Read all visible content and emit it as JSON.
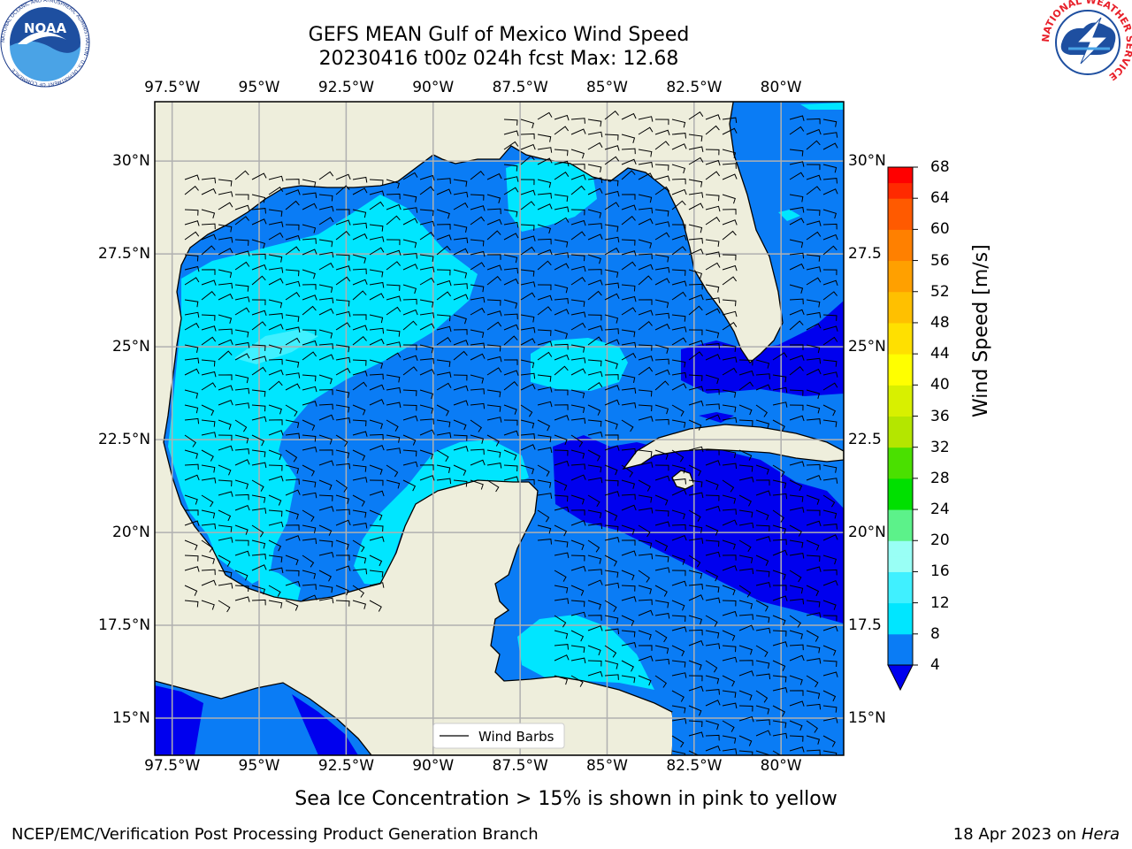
{
  "title_line1": "GEFS MEAN Gulf of Mexico Wind Speed",
  "title_line2": "20230416 t00z 024h fcst   Max: 12.68",
  "lon_labels": [
    "97.5°W",
    "95°W",
    "92.5°W",
    "90°W",
    "87.5°W",
    "85°W",
    "82.5°W",
    "80°W"
  ],
  "lon_values": [
    -97.5,
    -95,
    -92.5,
    -90,
    -87.5,
    -85,
    -82.5,
    -80
  ],
  "lat_labels_left": [
    "30°N",
    "27.5°N",
    "25°N",
    "22.5°N",
    "20°N",
    "17.5°N",
    "15°N"
  ],
  "lat_labels_right": [
    "30°N",
    "27.5",
    "25°N",
    "22.5",
    "20°N",
    "17.5",
    "15°N"
  ],
  "lat_values": [
    30,
    27.5,
    25,
    22.5,
    20,
    17.5,
    15
  ],
  "map_extent": {
    "lon_min": -98,
    "lon_max": -78.2,
    "lat_min": 14,
    "lat_max": 31.6
  },
  "legend_label": "Wind Barbs",
  "colorbar": {
    "title": "Wind Speed [m/s]",
    "tick_labels": [
      "4",
      "8",
      "12",
      "16",
      "20",
      "24",
      "28",
      "32",
      "36",
      "40",
      "44",
      "48",
      "52",
      "56",
      "60",
      "64",
      "68"
    ],
    "levels": [
      4,
      6,
      8,
      10,
      12,
      14,
      16,
      18,
      20,
      22,
      24,
      26,
      28,
      30,
      32,
      34,
      36,
      38,
      40,
      42,
      44,
      46,
      48,
      50,
      52,
      54,
      56,
      58,
      60,
      62,
      64,
      66,
      68
    ],
    "colors": [
      "#0a7cf5",
      "#0a7cf5",
      "#00e6ff",
      "#00e6ff",
      "#40f0ff",
      "#40f0ff",
      "#99fff5",
      "#99fff5",
      "#5cf28a",
      "#5cf28a",
      "#00e000",
      "#00e000",
      "#4ae000",
      "#4ae000",
      "#b4e600",
      "#b4e600",
      "#d8f000",
      "#d8f000",
      "#ffff00",
      "#ffff00",
      "#ffe000",
      "#ffe000",
      "#ffc000",
      "#ffc000",
      "#ffa000",
      "#ffa000",
      "#ff8000",
      "#ff8000",
      "#ff5a00",
      "#ff5a00",
      "#ff2a00",
      "#ff0000"
    ],
    "under_color": "#0000ee"
  },
  "note": "Sea Ice Concentration > 15% is shown in pink to yellow",
  "footer_left": "NCEP/EMC/Verification Post Processing Product Generation Branch",
  "footer_right_prefix": "18 Apr 2023 on ",
  "footer_right_machine": "Hera",
  "logos": {
    "noaa_text": "NOAA",
    "noaa_ring": "NATIONAL OCEANIC AND ATMOSPHERIC ADMINISTRATION · U.S. DEPARTMENT OF COMMERCE",
    "nws_ring": "NATIONAL WEATHER SERVICE"
  },
  "colors": {
    "land": "#eeeedc",
    "speed_4_8": "#0a7cf5",
    "speed_8_12": "#00e6ff",
    "speed_12_16": "#40f0ff",
    "speed_below_4": "#0000ee",
    "grid": "#b0b0b0"
  }
}
